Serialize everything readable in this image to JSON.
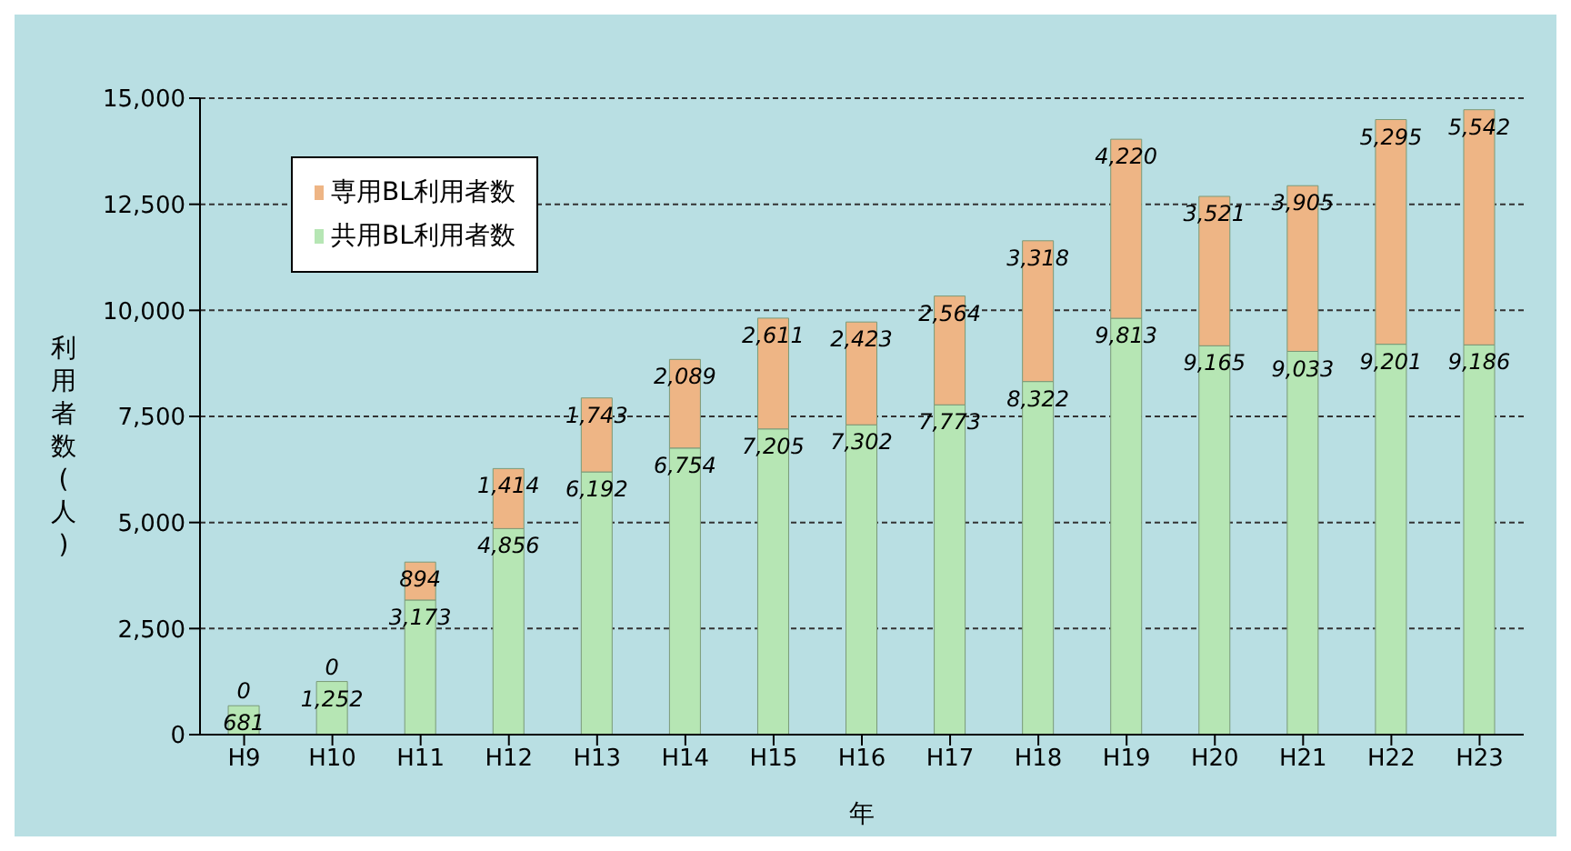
{
  "chart_data": {
    "type": "bar",
    "stacked": true,
    "xlabel": "年",
    "ylabel": "利用者数(人)",
    "categories": [
      "H9",
      "H10",
      "H11",
      "H12",
      "H13",
      "H14",
      "H15",
      "H16",
      "H17",
      "H18",
      "H19",
      "H20",
      "H21",
      "H22",
      "H23"
    ],
    "series": [
      {
        "name": "共用BL利用者数",
        "color": "#b6e6b4",
        "values": [
          681,
          1252,
          3173,
          4856,
          6192,
          6754,
          7205,
          7302,
          7773,
          8322,
          9813,
          9165,
          9033,
          9201,
          9186
        ],
        "value_labels": [
          "681",
          "1,252",
          "3,173",
          "4,856",
          "6,192",
          "6,754",
          "7,205",
          "7,302",
          "7,773",
          "8,322",
          "9,813",
          "9,165",
          "9,033",
          "9,201",
          "9,186"
        ]
      },
      {
        "name": "専用BL利用者数",
        "color": "#eeb585",
        "values": [
          0,
          0,
          894,
          1414,
          1743,
          2089,
          2611,
          2423,
          2564,
          3318,
          4220,
          3521,
          3905,
          5295,
          5542
        ],
        "value_labels": [
          "0",
          "0",
          "894",
          "1,414",
          "1,743",
          "2,089",
          "2,611",
          "2,423",
          "2,564",
          "3,318",
          "4,220",
          "3,521",
          "3,905",
          "5,295",
          "5,542"
        ]
      }
    ],
    "ylim": [
      0,
      15000
    ],
    "yticks": [
      {
        "value": 0,
        "label": "0"
      },
      {
        "value": 2500,
        "label": "2,500"
      },
      {
        "value": 5000,
        "label": "5,000"
      },
      {
        "value": 7500,
        "label": "7,500"
      },
      {
        "value": 10000,
        "label": "10,000"
      },
      {
        "value": 12500,
        "label": "12,500"
      },
      {
        "value": 15000,
        "label": "15,000"
      }
    ],
    "grid": "y",
    "legend": "top left"
  }
}
